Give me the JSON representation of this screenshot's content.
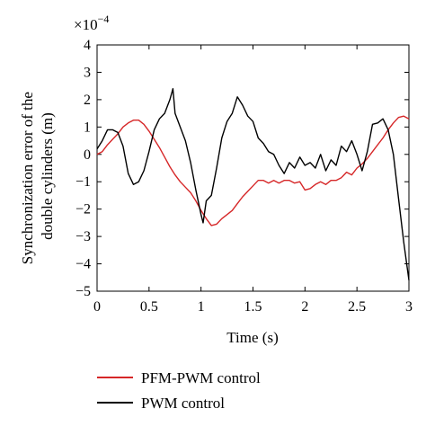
{
  "chart_data": {
    "type": "line",
    "xlabel": "Time (s)",
    "ylabel": "Synchronization error of the double cylinders (m)",
    "ylabel_lines": [
      "Synchronization error of the",
      "double cylinders (m)"
    ],
    "y_multiplier": {
      "base": "×10",
      "exponent": "−4"
    },
    "xlim": [
      0,
      3
    ],
    "ylim": [
      -5,
      4
    ],
    "xticks": [
      0,
      0.5,
      1,
      1.5,
      2,
      2.5,
      3
    ],
    "xtick_labels": [
      "0",
      "0.5",
      "1",
      "1.5",
      "2",
      "2.5",
      "3"
    ],
    "yticks": [
      -5,
      -4,
      -3,
      -2,
      -1,
      0,
      1,
      2,
      3,
      4
    ],
    "ytick_labels": [
      "−5",
      "−4",
      "−3",
      "−2",
      "−1",
      "0",
      "1",
      "2",
      "3",
      "4"
    ],
    "grid": false,
    "legend_position": "bottom",
    "series": [
      {
        "name": "PFM-PWM control",
        "color": "#d62728",
        "x": [
          0,
          0.05,
          0.1,
          0.15,
          0.2,
          0.25,
          0.3,
          0.35,
          0.4,
          0.45,
          0.5,
          0.55,
          0.6,
          0.65,
          0.7,
          0.75,
          0.8,
          0.85,
          0.9,
          0.95,
          1.0,
          1.05,
          1.1,
          1.15,
          1.2,
          1.25,
          1.3,
          1.35,
          1.4,
          1.45,
          1.5,
          1.55,
          1.6,
          1.65,
          1.7,
          1.75,
          1.8,
          1.85,
          1.9,
          1.95,
          2.0,
          2.05,
          2.1,
          2.15,
          2.2,
          2.25,
          2.3,
          2.35,
          2.4,
          2.45,
          2.5,
          2.55,
          2.6,
          2.65,
          2.7,
          2.75,
          2.8,
          2.85,
          2.9,
          2.95,
          3.0
        ],
        "y": [
          0,
          0.1,
          0.35,
          0.55,
          0.75,
          1.0,
          1.15,
          1.25,
          1.25,
          1.1,
          0.85,
          0.55,
          0.25,
          -0.1,
          -0.45,
          -0.75,
          -1.0,
          -1.2,
          -1.4,
          -1.7,
          -2.05,
          -2.35,
          -2.6,
          -2.55,
          -2.35,
          -2.2,
          -2.05,
          -1.8,
          -1.55,
          -1.35,
          -1.15,
          -0.95,
          -0.95,
          -1.05,
          -0.95,
          -1.05,
          -0.95,
          -0.95,
          -1.05,
          -1.0,
          -1.3,
          -1.25,
          -1.1,
          -1.0,
          -1.1,
          -0.95,
          -0.95,
          -0.85,
          -0.65,
          -0.75,
          -0.5,
          -0.35,
          -0.15,
          0.1,
          0.35,
          0.6,
          0.9,
          1.15,
          1.35,
          1.4,
          1.3
        ]
      },
      {
        "name": "PWM control",
        "color": "#000000",
        "x": [
          0,
          0.05,
          0.1,
          0.15,
          0.2,
          0.25,
          0.3,
          0.35,
          0.4,
          0.45,
          0.5,
          0.55,
          0.6,
          0.65,
          0.7,
          0.73,
          0.75,
          0.8,
          0.85,
          0.9,
          0.95,
          1.0,
          1.02,
          1.05,
          1.1,
          1.15,
          1.2,
          1.25,
          1.3,
          1.35,
          1.4,
          1.45,
          1.5,
          1.55,
          1.6,
          1.65,
          1.7,
          1.75,
          1.8,
          1.85,
          1.9,
          1.95,
          2.0,
          2.05,
          2.1,
          2.15,
          2.2,
          2.25,
          2.3,
          2.35,
          2.4,
          2.45,
          2.5,
          2.55,
          2.6,
          2.65,
          2.7,
          2.75,
          2.8,
          2.85,
          2.9,
          2.95,
          3.0
        ],
        "y": [
          0.2,
          0.5,
          0.9,
          0.9,
          0.8,
          0.3,
          -0.7,
          -1.1,
          -1.0,
          -0.6,
          0.1,
          0.9,
          1.3,
          1.5,
          2.0,
          2.4,
          1.5,
          1.0,
          0.5,
          -0.3,
          -1.3,
          -2.2,
          -2.5,
          -1.7,
          -1.5,
          -0.5,
          0.6,
          1.2,
          1.5,
          2.1,
          1.8,
          1.4,
          1.2,
          0.6,
          0.4,
          0.1,
          0.0,
          -0.4,
          -0.7,
          -0.3,
          -0.5,
          -0.1,
          -0.4,
          -0.3,
          -0.5,
          0.0,
          -0.6,
          -0.2,
          -0.4,
          0.3,
          0.1,
          0.5,
          0.0,
          -0.6,
          0.1,
          1.1,
          1.15,
          1.3,
          0.9,
          0.0,
          -1.6,
          -3.2,
          -4.6
        ]
      }
    ]
  }
}
